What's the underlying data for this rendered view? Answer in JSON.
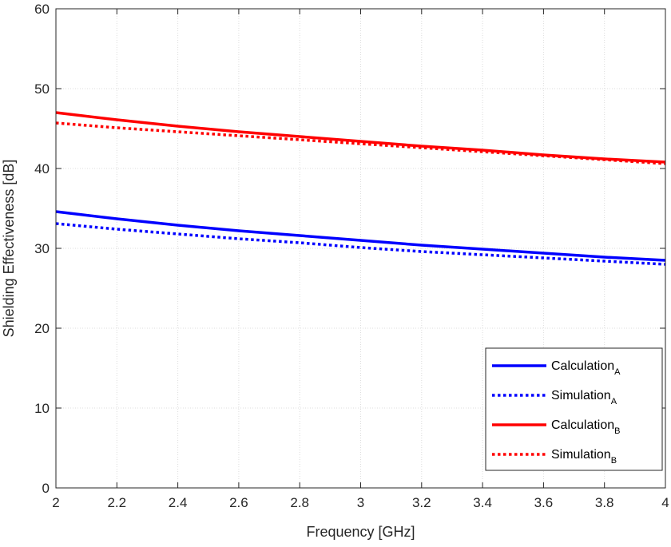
{
  "chart_data": {
    "type": "line",
    "xlabel": "Frequency [GHz]",
    "ylabel": "Shielding Effectiveness [dB]",
    "xlim": [
      2,
      4
    ],
    "ylim": [
      0,
      60
    ],
    "xticks": [
      2,
      2.2,
      2.4,
      2.6,
      2.8,
      3,
      3.2,
      3.4,
      3.6,
      3.8,
      4
    ],
    "xtick_labels": [
      "2",
      "2.2",
      "2.4",
      "2.6",
      "2.8",
      "3",
      "3.2",
      "3.4",
      "3.6",
      "3.8",
      "4"
    ],
    "yticks": [
      0,
      10,
      20,
      30,
      40,
      50,
      60
    ],
    "ytick_labels": [
      "0",
      "10",
      "20",
      "30",
      "40",
      "50",
      "60"
    ],
    "grid": true,
    "legend_position": "bottom-right",
    "x": [
      2,
      2.2,
      2.4,
      2.6,
      2.8,
      3,
      3.2,
      3.4,
      3.6,
      3.8,
      4
    ],
    "series": [
      {
        "name": "Calculation",
        "subscript": "A",
        "color": "#0000ff",
        "style": "solid",
        "values": [
          34.6,
          33.7,
          32.9,
          32.2,
          31.6,
          31.0,
          30.4,
          29.9,
          29.4,
          28.9,
          28.5
        ]
      },
      {
        "name": "Simulation",
        "subscript": "A",
        "color": "#0000ff",
        "style": "dotted",
        "values": [
          33.1,
          32.4,
          31.8,
          31.2,
          30.7,
          30.1,
          29.6,
          29.2,
          28.8,
          28.4,
          28.0
        ]
      },
      {
        "name": "Calculation",
        "subscript": "B",
        "color": "#ff0000",
        "style": "solid",
        "values": [
          47.0,
          46.1,
          45.3,
          44.6,
          44.0,
          43.4,
          42.8,
          42.3,
          41.7,
          41.2,
          40.8
        ]
      },
      {
        "name": "Simulation",
        "subscript": "B",
        "color": "#ff0000",
        "style": "dotted",
        "values": [
          45.7,
          45.1,
          44.6,
          44.1,
          43.6,
          43.1,
          42.6,
          42.1,
          41.6,
          41.1,
          40.6
        ]
      }
    ]
  }
}
